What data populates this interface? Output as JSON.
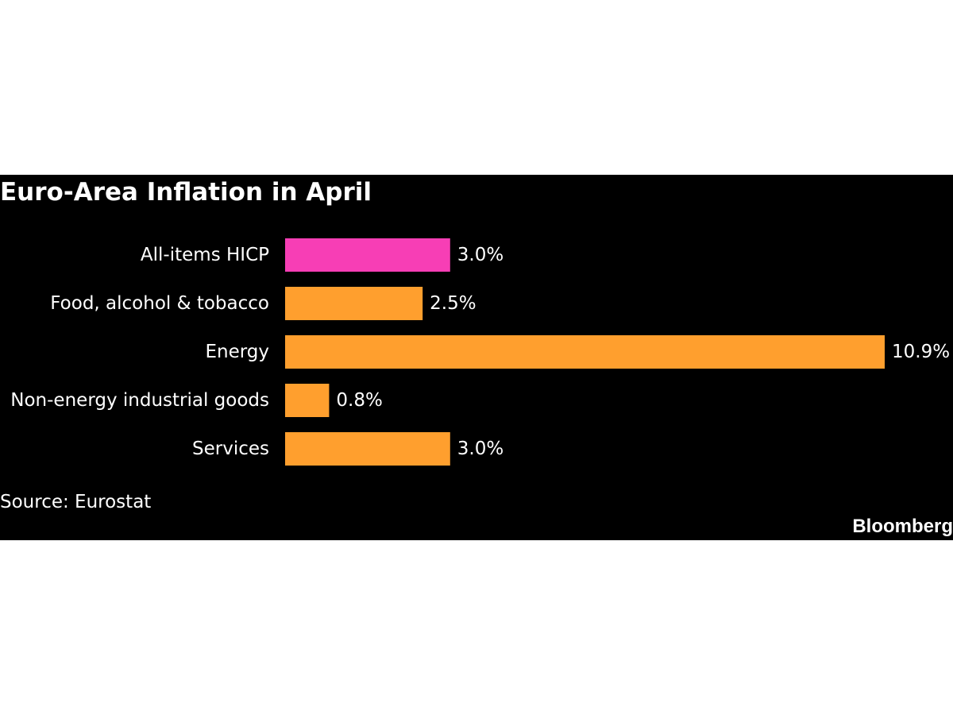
{
  "chart_data": {
    "type": "bar",
    "orientation": "horizontal",
    "title": "Euro-Area Inflation in April",
    "categories": [
      "All-items HICP",
      "Food, alcohol & tobacco",
      "Energy",
      "Non-energy industrial goods",
      "Services"
    ],
    "values": [
      3.0,
      2.5,
      10.9,
      0.8,
      3.0
    ],
    "value_labels": [
      "3.0%",
      "2.5%",
      "10.9%",
      "0.8%",
      "3.0%"
    ],
    "bar_colors": [
      "#f73eb5",
      "#ff9f2e",
      "#ff9f2e",
      "#ff9f2e",
      "#ff9f2e"
    ],
    "xlim": [
      0,
      10.9
    ],
    "grid": false,
    "legend": "none",
    "xlabel": "",
    "ylabel": ""
  },
  "footer": {
    "source": "Source: Eurostat",
    "brand": "Bloomberg"
  },
  "colors": {
    "background": "#000000",
    "highlight": "#f73eb5",
    "bar": "#ff9f2e",
    "text": "#ffffff"
  }
}
